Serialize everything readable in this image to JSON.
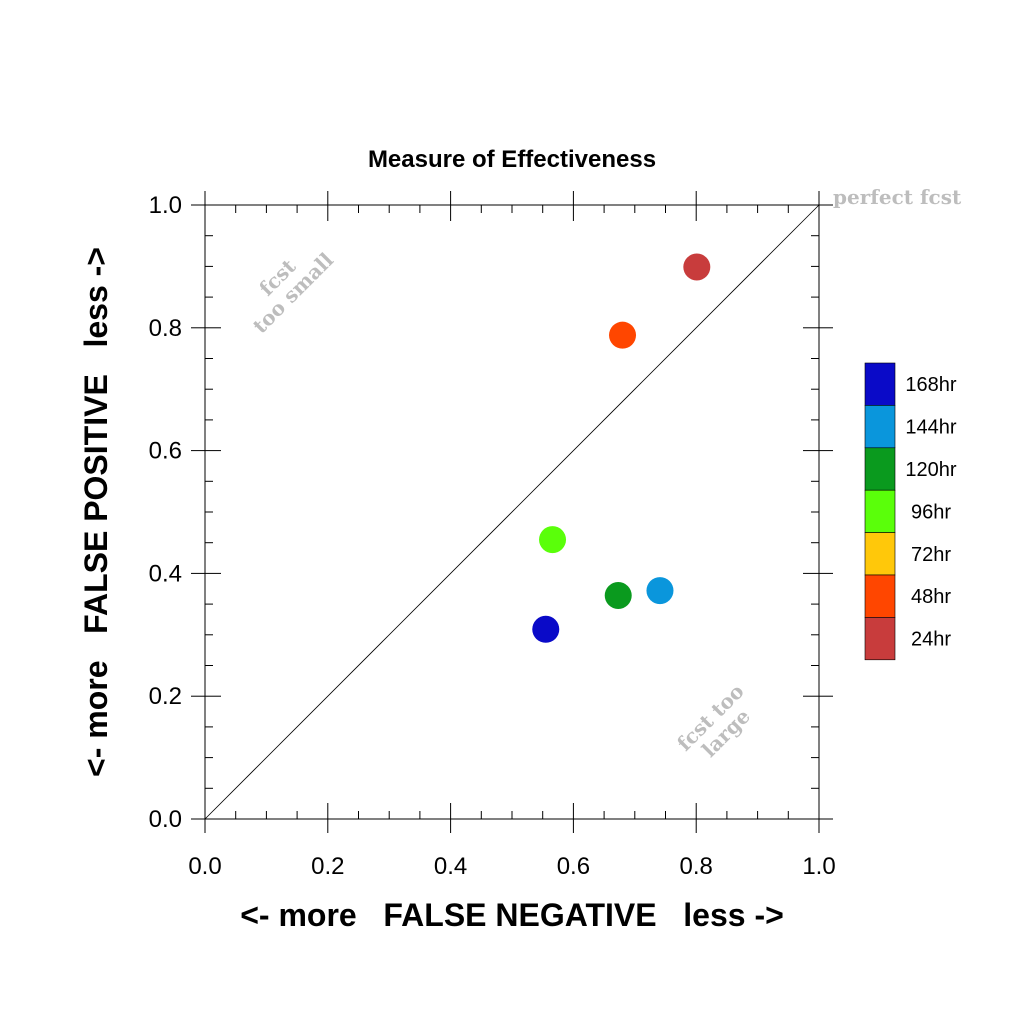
{
  "chart_data": {
    "type": "scatter",
    "title": "Measure of Effectiveness",
    "xlabel": "<- more   FALSE NEGATIVE   less ->",
    "ylabel": "<- more   FALSE POSITIVE   less ->",
    "xlim": [
      0.0,
      1.0
    ],
    "ylim": [
      0.0,
      1.0
    ],
    "x_ticks": [
      "0.0",
      "0.2",
      "0.4",
      "0.6",
      "0.8",
      "1.0"
    ],
    "y_ticks": [
      "0.0",
      "0.2",
      "0.4",
      "0.6",
      "0.8",
      "1.0"
    ],
    "grid": false,
    "diagonal_line": true,
    "annotations": {
      "perfect": "perfect fcst",
      "too_small_line1": "fcst",
      "too_small_line2": "too small",
      "too_large_line1": "fcst too",
      "too_large_line2": "large"
    },
    "legend_position": "right",
    "legend": [
      {
        "label": "168hr",
        "color": "#0a0ac8"
      },
      {
        "label": "144hr",
        "color": "#0a96dc"
      },
      {
        "label": "120hr",
        "color": "#0a9a1e"
      },
      {
        "label": "96hr",
        "color": "#5aff0a"
      },
      {
        "label": "72hr",
        "color": "#ffc80a"
      },
      {
        "label": "48hr",
        "color": "#ff4600"
      },
      {
        "label": "24hr",
        "color": "#c83c3c"
      }
    ],
    "series": [
      {
        "name": "24hr",
        "color": "#c83c3c",
        "x": 0.801,
        "y": 0.899
      },
      {
        "name": "48hr",
        "color": "#ff4600",
        "x": 0.68,
        "y": 0.788
      },
      {
        "name": "96hr",
        "color": "#5aff0a",
        "x": 0.566,
        "y": 0.455
      },
      {
        "name": "120hr",
        "color": "#0a9a1e",
        "x": 0.673,
        "y": 0.364
      },
      {
        "name": "144hr",
        "color": "#0a96dc",
        "x": 0.741,
        "y": 0.372
      },
      {
        "name": "168hr",
        "color": "#0a0ac8",
        "x": 0.555,
        "y": 0.309
      }
    ]
  }
}
